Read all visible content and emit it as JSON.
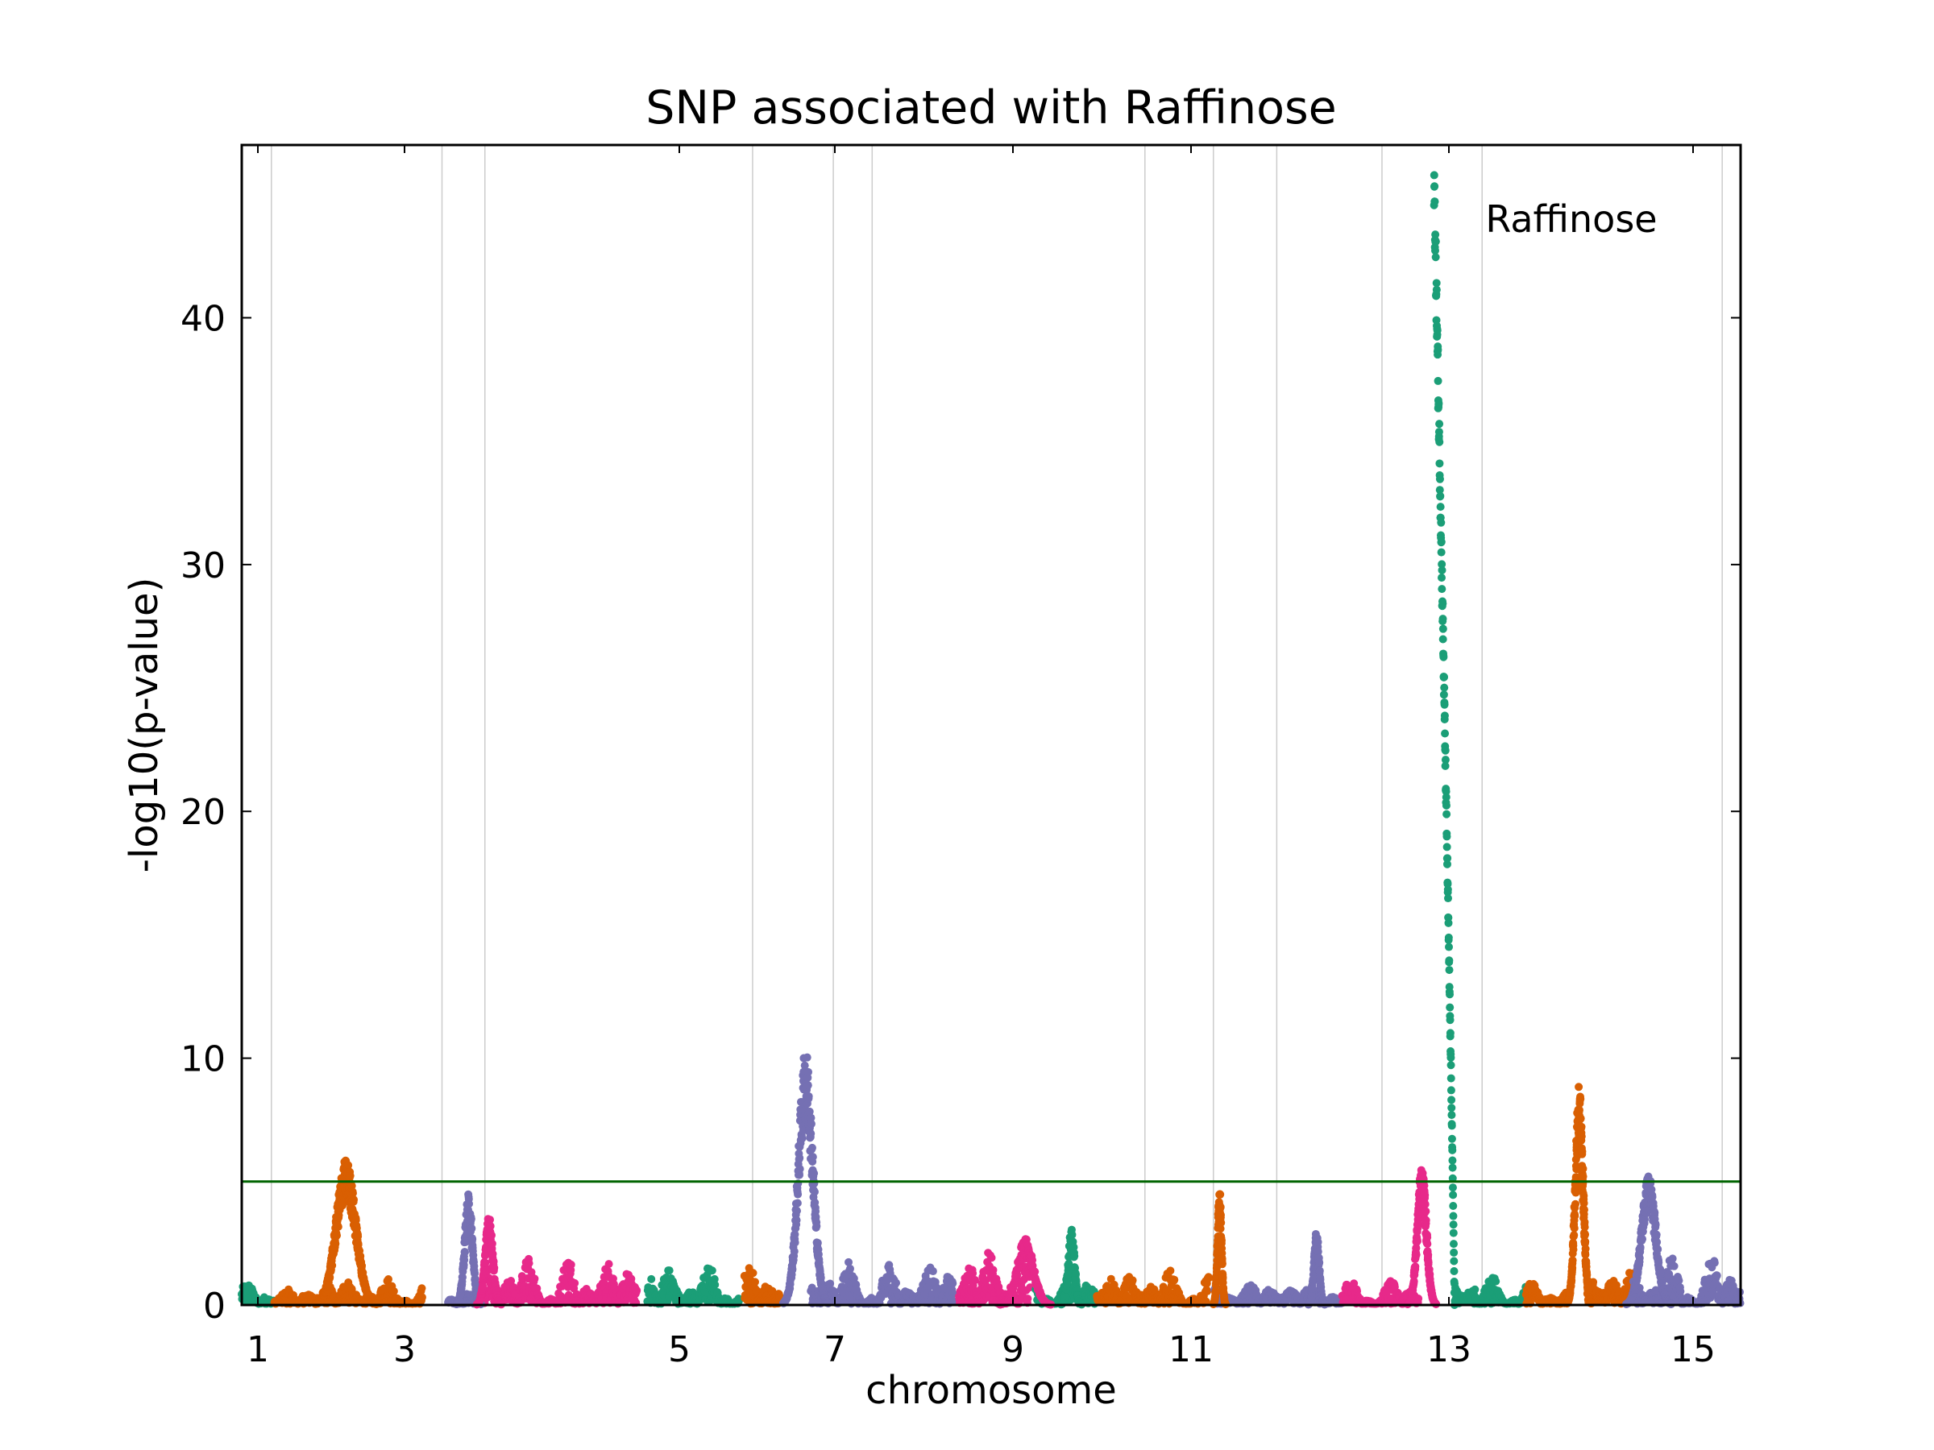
{
  "chart_data": {
    "type": "scatter",
    "title": "SNP associated with Raffinose",
    "xlabel": "chromosome",
    "ylabel": "-log10(p-value)",
    "legend_text": "Raffinose",
    "legend_placement": "top-right",
    "xlim": [
      0.83,
      15.5
    ],
    "ylim": [
      0,
      47
    ],
    "x_ticks": [
      "1",
      "3",
      "5",
      "7",
      "9",
      "11",
      "13",
      "15"
    ],
    "y_ticks": [
      "0",
      "10",
      "20",
      "30",
      "40"
    ],
    "threshold": {
      "value": 5,
      "color": "#006400"
    },
    "chromosome_boundaries": [
      1.12,
      2.79,
      3.21,
      5.83,
      6.62,
      7.0,
      9.67,
      10.34,
      10.96,
      11.99,
      12.97,
      15.32,
      16.4,
      17.44
    ],
    "colors": [
      "#1b9e77",
      "#d95f02",
      "#7570b3",
      "#e7298a"
    ],
    "grid": "vertical chromosome boundary lines",
    "peaks": [
      {
        "chromosome": "1",
        "x_center": 1.85,
        "max": 5.9,
        "color": "#d95f02"
      },
      {
        "chromosome": "3",
        "x_center": 3.05,
        "max": 4.5,
        "color": "#7570b3"
      },
      {
        "chromosome": "6",
        "x_center": 6.35,
        "max": 10.4,
        "color": "#7570b3"
      },
      {
        "chromosome": "10",
        "x_center": 10.4,
        "max": 4.8,
        "color": "#d95f02"
      },
      {
        "chromosome": "12",
        "x_center": 12.4,
        "max": 5.6,
        "color": "#e7298a"
      },
      {
        "chromosome": "12",
        "x_center": 12.55,
        "max": 46.8,
        "color": "#1b9e77"
      },
      {
        "chromosome": "14",
        "x_center": 13.9,
        "max": 8.9,
        "color": "#d95f02"
      },
      {
        "chromosome": "15",
        "x_center": 14.6,
        "max": 5.3,
        "color": "#7570b3"
      }
    ]
  }
}
